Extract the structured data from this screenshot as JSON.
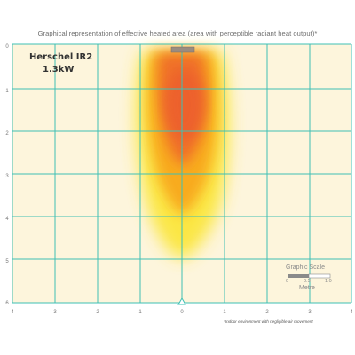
{
  "title": "Graphical representation of effective heated area (area with perceptible radiant heat output)*",
  "heater": {
    "model": "Herschel IR2",
    "power": "1.3kW"
  },
  "axes": {
    "y_ticks": [
      "0",
      "1",
      "2",
      "3",
      "4",
      "5",
      "6"
    ],
    "x_ticks": [
      "4",
      "3",
      "2",
      "1",
      "0",
      "1",
      "2",
      "3",
      "4"
    ]
  },
  "graphic_scale": {
    "title": "Graphic Scale",
    "ticks": [
      "0",
      "0.5",
      "1.0"
    ],
    "unit": "Metre"
  },
  "footnote": "*Indoor environment with negligible air movement",
  "colors": {
    "background": "#fdf5dc",
    "grid": "#3ec0b5",
    "heat_core": "#ef6a28",
    "heat_mid": "#f9b422",
    "heat_edge": "#fbe84a",
    "heater_unit": "#9b8c80"
  }
}
